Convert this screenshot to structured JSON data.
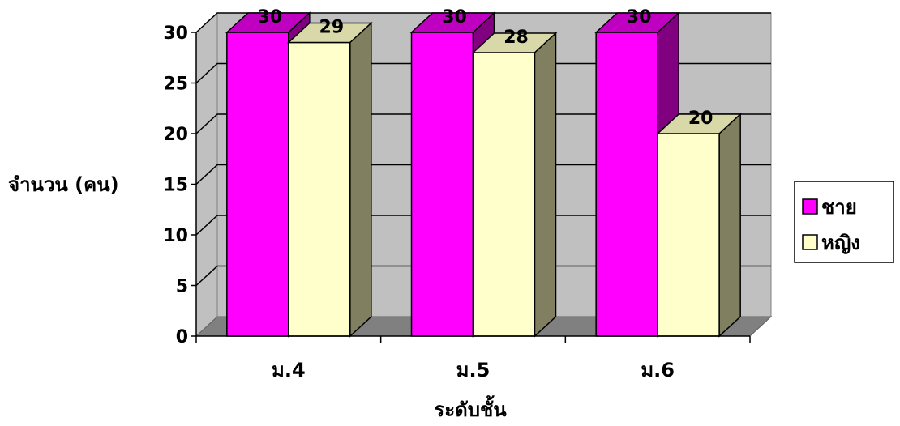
{
  "chart_data": {
    "type": "bar",
    "style": "3d-clustered-column",
    "categories": [
      "ม.4",
      "ม.5",
      "ม.6"
    ],
    "series": [
      {
        "name": "ชาย",
        "values": [
          30,
          30,
          30
        ],
        "color": "#FF00FF",
        "side_color": "#800080"
      },
      {
        "name": "หญิง",
        "values": [
          29,
          28,
          20
        ],
        "color": "#FFFFCC",
        "side_color": "#808060"
      }
    ],
    "xlabel": "ระดับชั้น",
    "ylabel": "จำนวน (คน)",
    "ylim": [
      0,
      30
    ],
    "yticks": [
      0,
      5,
      10,
      15,
      20,
      25,
      30
    ],
    "grid": true,
    "wall_color": "#C0C0C0",
    "floor_color": "#808080",
    "legend_position": "right"
  }
}
